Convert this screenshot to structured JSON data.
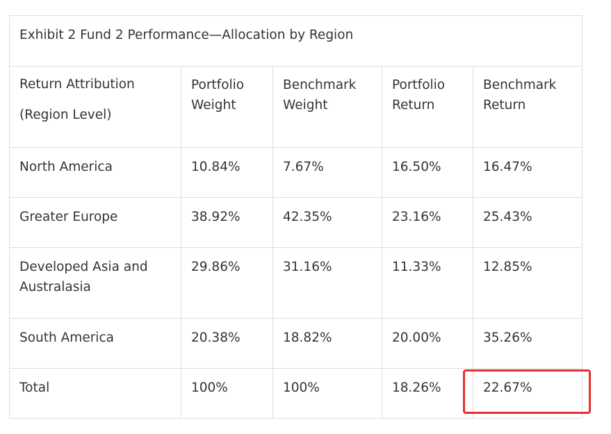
{
  "exhibit": {
    "caption": "Exhibit 2 Fund 2 Performance—Allocation by Region",
    "headers": [
      [
        "Return Attribution",
        "(Region Level)"
      ],
      [
        "Portfolio",
        "Weight"
      ],
      [
        "Benchmark",
        "Weight"
      ],
      [
        "Portfolio",
        "Return"
      ],
      [
        "Benchmark",
        "Return"
      ]
    ],
    "rows": [
      [
        "North America",
        "10.84%",
        "7.67%",
        "16.50%",
        "16.47%"
      ],
      [
        "Greater Europe",
        "38.92%",
        "42.35%",
        "23.16%",
        "25.43%"
      ],
      [
        "Developed Asia and Australasia",
        "29.86%",
        "31.16%",
        "11.33%",
        "12.85%"
      ],
      [
        "South America",
        "20.38%",
        "18.82%",
        "20.00%",
        "35.26%"
      ],
      [
        "Total",
        "100%",
        "100%",
        "18.26%",
        "22.67%"
      ]
    ],
    "highlight_color": "#e8302a"
  }
}
